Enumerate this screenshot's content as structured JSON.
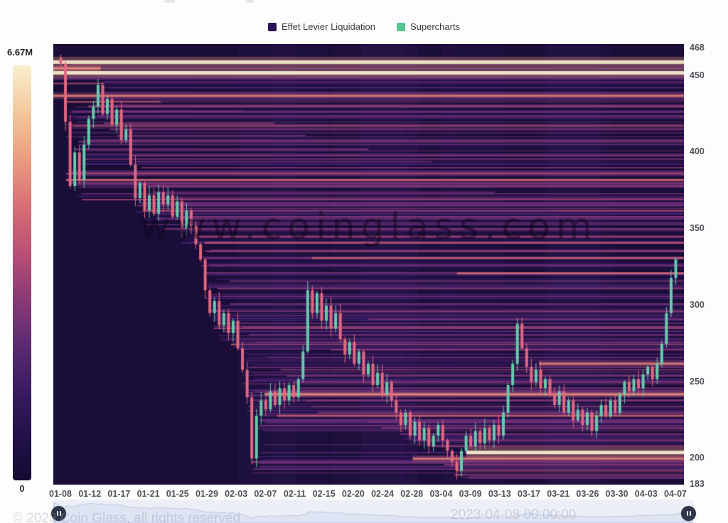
{
  "legend": {
    "items": [
      {
        "label": "Effet Levier Liquidation",
        "color": "#2d1457"
      },
      {
        "label": "Supercharts",
        "color": "#56c68d"
      }
    ]
  },
  "colorbar": {
    "max_label": "6.67M",
    "min_label": "0",
    "stops": [
      "#f9efcd",
      "#f3c89e",
      "#ea9e81",
      "#da7175",
      "#bb5176",
      "#8d3c75",
      "#5f2b73",
      "#3b1d5f",
      "#23114b",
      "#150a34"
    ]
  },
  "watermark": "www.coinglass.com",
  "footer": {
    "left_ghost": "© 2023 Coin Glass, all rights reserved",
    "right_ghost": "2023-04-08 00:00:00"
  },
  "chart_data": {
    "type": "heatmap",
    "title": "Effet Levier Liquidation / Supercharts",
    "legend_position": "top",
    "grid": false,
    "x_ticks": [
      "01-08",
      "01-12",
      "01-17",
      "01-21",
      "01-25",
      "01-29",
      "02-03",
      "02-07",
      "02-11",
      "02-15",
      "02-20",
      "02-24",
      "02-28",
      "03-04",
      "03-09",
      "03-13",
      "03-17",
      "03-21",
      "03-26",
      "03-30",
      "04-03",
      "04-07"
    ],
    "y_ticks": [
      468,
      450,
      400,
      350,
      300,
      250,
      200,
      183
    ],
    "y_min": 183,
    "y_max": 468,
    "colorbar_max_value": "6.67M",
    "colorbar_min_value": "0",
    "bg": "#1a0d38",
    "candle_up": "#67cbae",
    "candle_down": "#e16880",
    "colormap": [
      [
        0,
        "#1b0d3a"
      ],
      [
        0.22,
        "#41206f"
      ],
      [
        0.42,
        "#6f3078"
      ],
      [
        0.6,
        "#a34673"
      ],
      [
        0.75,
        "#cf6573"
      ],
      [
        0.87,
        "#ea9b7f"
      ],
      [
        1,
        "#f9efcd"
      ]
    ],
    "price_closes": [
      458,
      420,
      378,
      400,
      382,
      405,
      422,
      430,
      444,
      425,
      435,
      418,
      428,
      408,
      415,
      392,
      370,
      380,
      362,
      372,
      360,
      374,
      366,
      372,
      358,
      368,
      350,
      362,
      352,
      340,
      330,
      310,
      295,
      303,
      287,
      295,
      282,
      290,
      272,
      258,
      240,
      200,
      228,
      238,
      232,
      244,
      235,
      246,
      238,
      248,
      240,
      252,
      270,
      310,
      295,
      308,
      290,
      300,
      285,
      295,
      278,
      268,
      276,
      262,
      270,
      255,
      262,
      248,
      256,
      242,
      250,
      238,
      230,
      222,
      230,
      215,
      224,
      212,
      220,
      208,
      215,
      222,
      212,
      205,
      198,
      192,
      205,
      215,
      208,
      218,
      210,
      220,
      212,
      222,
      215,
      230,
      248,
      262,
      288,
      272,
      260,
      250,
      258,
      246,
      252,
      242,
      235,
      244,
      230,
      238,
      225,
      232,
      222,
      230,
      218,
      228,
      235,
      228,
      238,
      230,
      242,
      250,
      244,
      252,
      246,
      255,
      260,
      252,
      262,
      275,
      295,
      318,
      330
    ],
    "major_bands": [
      [
        459,
        0,
        1,
        1,
        5
      ],
      [
        455,
        0,
        0.075,
        0.85,
        3
      ],
      [
        452,
        0,
        1,
        1,
        5
      ],
      [
        448,
        0,
        1,
        0.4,
        2
      ],
      [
        445,
        0,
        0.08,
        0.6,
        2
      ],
      [
        437,
        0,
        1,
        0.8,
        3
      ],
      [
        433,
        0.02,
        0.17,
        0.7,
        2
      ],
      [
        430,
        0.055,
        1,
        0.5,
        3
      ],
      [
        427,
        0.06,
        0.3,
        0.45,
        2
      ],
      [
        424,
        0.07,
        1,
        0.4,
        2
      ],
      [
        419,
        0.08,
        0.35,
        0.5,
        2
      ],
      [
        415,
        0.09,
        1,
        0.45,
        2
      ],
      [
        411,
        0.1,
        0.4,
        0.4,
        2
      ],
      [
        407,
        0.04,
        1,
        0.5,
        2
      ],
      [
        402,
        0.035,
        0.5,
        0.45,
        2
      ],
      [
        398,
        0.12,
        1,
        0.5,
        2
      ],
      [
        394,
        0.13,
        0.6,
        0.4,
        2
      ],
      [
        390,
        0.14,
        1,
        0.45,
        2
      ],
      [
        386,
        0.02,
        1,
        0.55,
        2
      ],
      [
        382,
        0.02,
        1,
        0.75,
        3
      ],
      [
        378,
        0.15,
        1,
        0.5,
        2
      ],
      [
        374,
        0.16,
        0.7,
        0.4,
        2
      ],
      [
        370,
        0.17,
        1,
        0.45,
        2
      ],
      [
        366,
        0.18,
        1,
        0.4,
        2
      ],
      [
        362,
        0.19,
        0.8,
        0.45,
        2
      ],
      [
        358,
        0.2,
        1,
        0.5,
        2
      ],
      [
        354,
        0.21,
        1,
        0.4,
        2
      ],
      [
        350,
        0.22,
        1,
        0.45,
        2
      ],
      [
        345,
        0.23,
        1,
        0.55,
        3
      ],
      [
        341,
        0.24,
        1,
        0.65,
        3
      ],
      [
        336,
        0.25,
        1,
        0.45,
        2
      ],
      [
        331,
        0.41,
        1,
        0.7,
        3
      ],
      [
        326,
        0.27,
        1,
        0.4,
        2
      ],
      [
        321,
        0.64,
        1,
        0.75,
        3
      ],
      [
        316,
        0.28,
        1,
        0.45,
        2
      ],
      [
        311,
        0.26,
        1,
        0.5,
        2
      ],
      [
        306,
        0.27,
        1,
        0.4,
        2
      ],
      [
        301,
        0.28,
        1,
        0.45,
        2
      ],
      [
        296,
        0.42,
        1,
        0.5,
        2
      ],
      [
        291,
        0.5,
        1,
        0.45,
        2
      ],
      [
        286,
        0.3,
        1,
        0.5,
        2
      ],
      [
        281,
        0.31,
        1,
        0.4,
        2
      ],
      [
        276,
        0.32,
        1,
        0.45,
        2
      ],
      [
        271,
        0.44,
        1,
        0.5,
        2
      ],
      [
        266,
        0.34,
        1,
        0.4,
        2
      ],
      [
        262,
        0.77,
        1,
        0.8,
        3
      ],
      [
        258,
        0.36,
        1,
        0.5,
        2
      ],
      [
        254,
        0.37,
        1,
        0.45,
        2
      ],
      [
        250,
        0.38,
        1,
        0.5,
        2
      ],
      [
        246,
        0.39,
        1,
        0.45,
        2
      ],
      [
        242,
        0.335,
        1,
        0.85,
        3
      ],
      [
        238,
        0.4,
        1,
        0.5,
        2
      ],
      [
        234,
        0.41,
        1,
        0.45,
        2
      ],
      [
        230,
        0.42,
        1,
        0.5,
        2
      ],
      [
        228,
        0.355,
        1,
        0.7,
        3
      ],
      [
        224,
        0.5,
        1,
        0.45,
        2
      ],
      [
        220,
        0.52,
        1,
        0.5,
        2
      ],
      [
        216,
        0.55,
        1,
        0.45,
        2
      ],
      [
        212,
        0.57,
        1,
        0.5,
        2
      ],
      [
        208,
        0.6,
        1,
        0.55,
        2
      ],
      [
        204,
        0.655,
        1,
        1,
        5
      ],
      [
        200,
        0.57,
        1,
        0.8,
        3
      ],
      [
        196,
        0.62,
        1,
        0.5,
        2
      ],
      [
        192,
        0.64,
        1,
        0.55,
        2
      ],
      [
        188,
        0.66,
        1,
        0.4,
        2
      ]
    ],
    "texture": {
      "count": 260,
      "seed": 11,
      "tolerance": 10,
      "min_intensity": 0.12,
      "max_intensity": 0.5
    }
  },
  "navigator": {
    "bg": "#edeff8",
    "fill": "#dfe4f3",
    "line": "#bdc7e3"
  }
}
